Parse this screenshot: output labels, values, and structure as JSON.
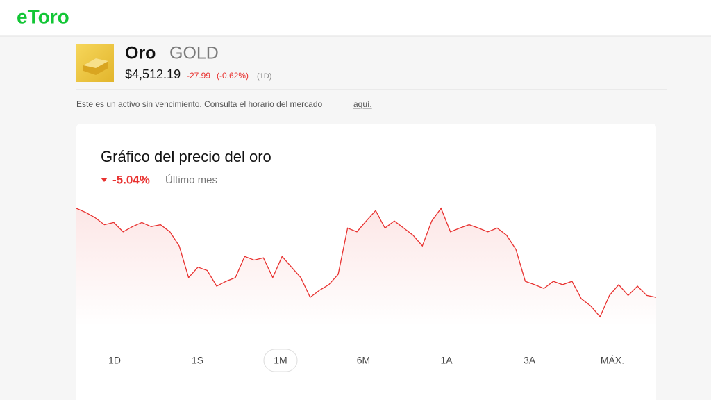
{
  "header": {
    "logo": "eToro"
  },
  "asset": {
    "name": "Oro",
    "ticker": "GOLD",
    "price": "$4,512.19",
    "change": "-27.99",
    "change_percent": "(-0.62%)",
    "period": "(1D)"
  },
  "notice": {
    "text": "Este es un activo sin vencimiento. Consulta el horario del mercado",
    "link": "aquí."
  },
  "chart_data": {
    "type": "line",
    "title": "Gráfico del precio del oro",
    "change": "-5.04%",
    "period": "Último mes",
    "color": "#e8312f",
    "values": [
      4751,
      4740,
      4726,
      4707,
      4713,
      4688,
      4702,
      4713,
      4702,
      4707,
      4688,
      4650,
      4565,
      4593,
      4584,
      4542,
      4555,
      4565,
      4622,
      4612,
      4618,
      4565,
      4622,
      4593,
      4565,
      4512,
      4531,
      4546,
      4574,
      4698,
      4688,
      4717,
      4745,
      4698,
      4717,
      4698,
      4679,
      4650,
      4717,
      4751,
      4688,
      4698,
      4707,
      4698,
      4688,
      4698,
      4679,
      4641,
      4555,
      4546,
      4536,
      4555,
      4546,
      4555,
      4508,
      4489,
      4460,
      4517,
      4546,
      4517,
      4542,
      4517,
      4512
    ]
  },
  "range_buttons": {
    "items": [
      "1D",
      "1S",
      "1M",
      "6M",
      "1A",
      "3A",
      "MÁX."
    ],
    "selected_index": 2
  }
}
